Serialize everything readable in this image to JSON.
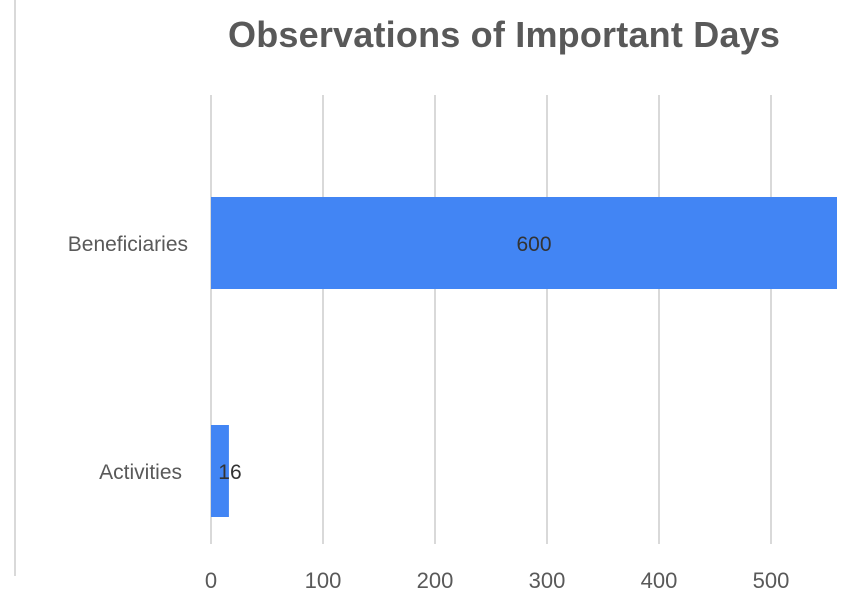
{
  "chart_data": {
    "type": "bar",
    "orientation": "horizontal",
    "title": "Observations of Important Days",
    "xlabel": "",
    "ylabel": "",
    "categories": [
      "Beneficiaries",
      "Activities"
    ],
    "values": [
      600,
      16
    ],
    "data_labels": [
      "600",
      "16"
    ],
    "x_ticks": [
      0,
      100,
      200,
      300,
      400,
      500
    ],
    "x_tick_labels": [
      "0",
      "100",
      "200",
      "300",
      "400",
      "500"
    ],
    "xlim": [
      0,
      560
    ],
    "grid": true,
    "legend": "none",
    "bar_color": "#4285f4",
    "grid_color": "#d9d9d9",
    "text_color": "#595959"
  }
}
